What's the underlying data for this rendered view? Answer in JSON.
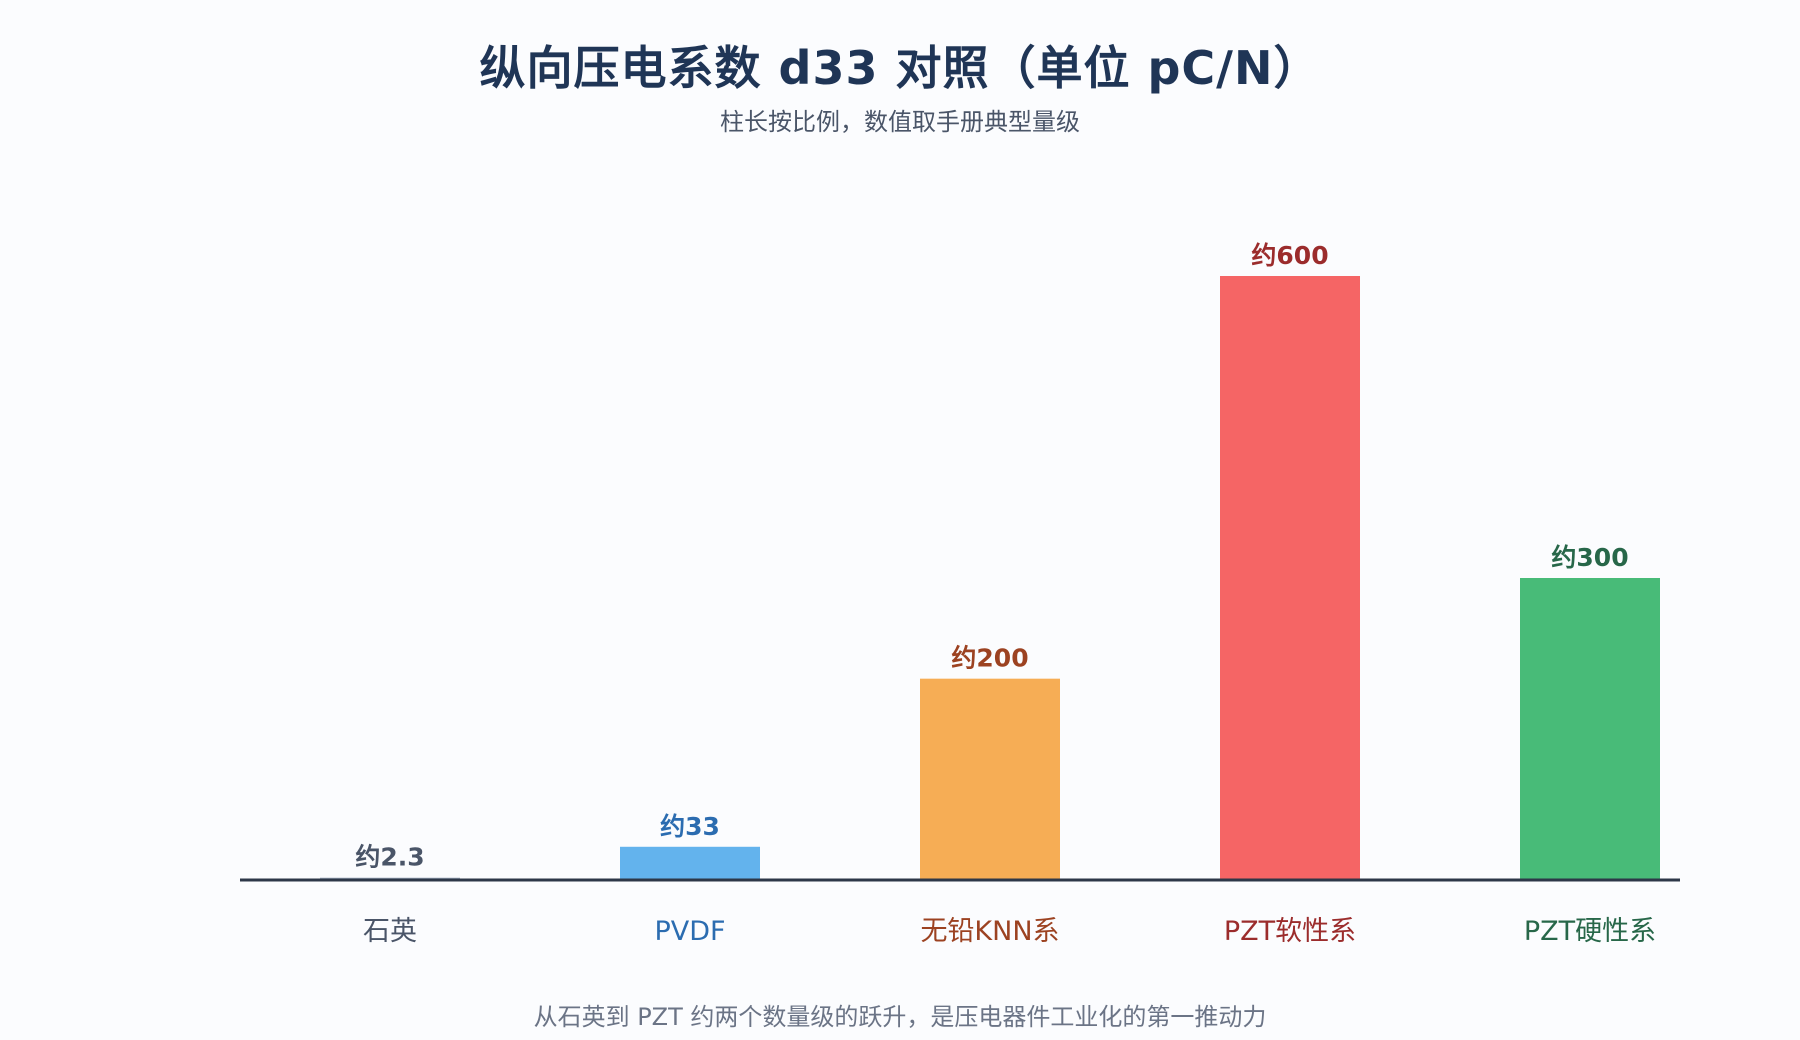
{
  "chart_data": {
    "type": "bar",
    "title": "纵向压电系数 d33 对照（单位 pC/N）",
    "subtitle": "柱长按比例，数值取手册典型量级",
    "footnote": "从石英到 PZT 约两个数量级的跃升，是压电器件工业化的第一推动力",
    "categories": [
      "石英",
      "PVDF",
      "无铅KNN系",
      "PZT软性系",
      "PZT硬性系"
    ],
    "values": [
      2.3,
      33,
      200,
      600,
      300
    ],
    "value_labels": [
      "约2.3",
      "约33",
      "约200",
      "约600",
      "约300"
    ],
    "colors": [
      "#a3b0c2",
      "#63b3ed",
      "#f6ad55",
      "#f56565",
      "#48bb78"
    ],
    "label_colors": [
      "#4a5568",
      "#2b6cb0",
      "#9c4221",
      "#9b2c2c",
      "#276749"
    ],
    "ylim": [
      0,
      600
    ],
    "xlabel": "",
    "ylabel": "",
    "grid": false
  }
}
